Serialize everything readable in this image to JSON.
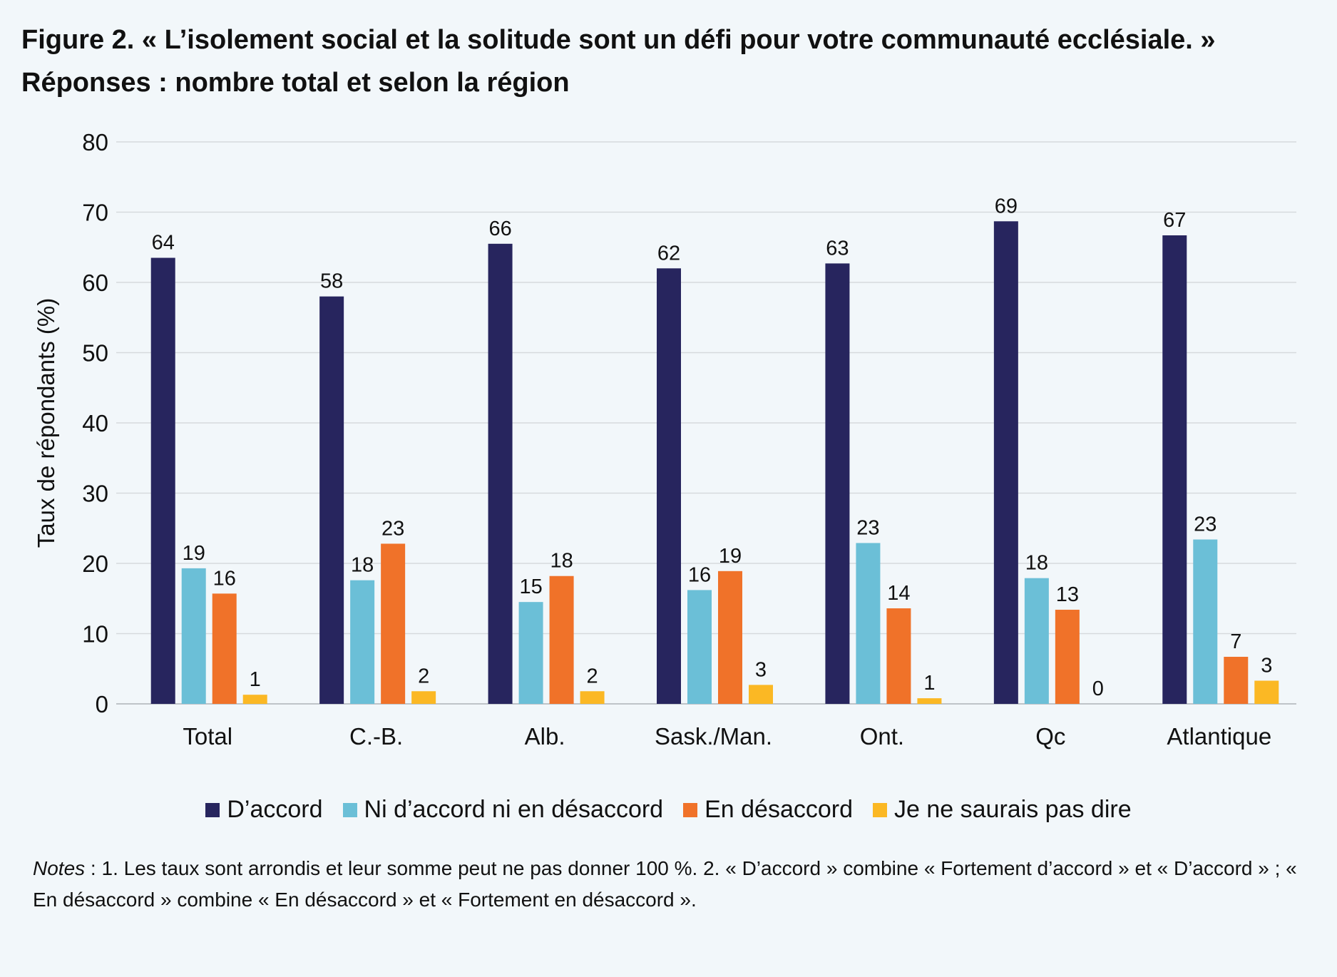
{
  "title": {
    "line1": "Figure 2. « L’isolement social et la solitude sont un défi pour votre communauté ecclésiale. »",
    "line2": "Réponses : nombre total et selon la région"
  },
  "chart_data": {
    "type": "bar",
    "ylabel": "Taux de répondants (%)",
    "ylim": [
      0,
      80
    ],
    "yticks": [
      0,
      10,
      20,
      30,
      40,
      50,
      60,
      70,
      80
    ],
    "grid": true,
    "legend_position": "bottom",
    "categories": [
      "Total",
      "C.-B.",
      "Alb.",
      "Sask./Man.",
      "Ont.",
      "Qc",
      "Atlantique"
    ],
    "series": [
      {
        "name": "D’accord",
        "color": "#27255e",
        "values": [
          63.5,
          58,
          65.5,
          62,
          62.7,
          68.7,
          66.7
        ],
        "labels": [
          "64",
          "58",
          "66",
          "62",
          "63",
          "69",
          "67"
        ]
      },
      {
        "name": "Ni d’accord ni en désaccord",
        "color": "#6bbfd7",
        "values": [
          19.3,
          17.6,
          14.5,
          16.2,
          22.9,
          17.9,
          23.4
        ],
        "labels": [
          "19",
          "18",
          "15",
          "16",
          "23",
          "18",
          "23"
        ]
      },
      {
        "name": "En désaccord",
        "color": "#f07229",
        "values": [
          15.7,
          22.8,
          18.2,
          18.9,
          13.6,
          13.4,
          6.7
        ],
        "labels": [
          "16",
          "23",
          "18",
          "19",
          "14",
          "13",
          "7"
        ]
      },
      {
        "name": "Je ne saurais pas dire",
        "color": "#fbb824",
        "values": [
          1.3,
          1.8,
          1.8,
          2.7,
          0.8,
          0,
          3.3
        ],
        "labels": [
          "1",
          "2",
          "2",
          "3",
          "1",
          "0",
          "3"
        ]
      }
    ]
  },
  "notes": {
    "label": "Notes",
    "text": " : 1. Les taux sont arrondis et leur somme peut ne pas donner 100 %. 2. « D’accord » combine « Fortement d’accord » et « D’accord » ; « En désaccord » combine « En désaccord » et « Fortement en désaccord »."
  }
}
